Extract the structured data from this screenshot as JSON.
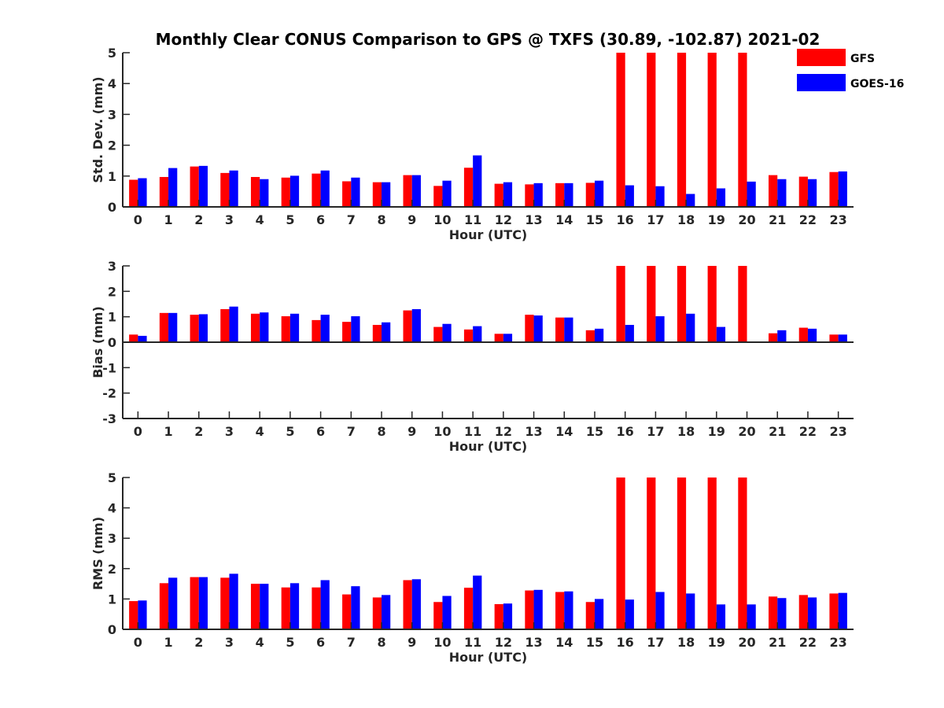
{
  "title": "Monthly Clear CONUS Comparison to GPS @ TXFS (30.89, -102.87) 2021-02",
  "legend": {
    "placement": "top-right",
    "items": [
      {
        "label": "GFS",
        "color": "#ff0000"
      },
      {
        "label": "GOES-16",
        "color": "#0000ff"
      }
    ]
  },
  "chart_data": [
    {
      "type": "bar",
      "xlabel": "Hour (UTC)",
      "ylabel": "Std. Dev. (mm)",
      "ylim": [
        0,
        5
      ],
      "yticks": [
        0,
        1,
        2,
        3,
        4,
        5
      ],
      "categories": [
        "0",
        "1",
        "2",
        "3",
        "4",
        "5",
        "6",
        "7",
        "8",
        "9",
        "10",
        "11",
        "12",
        "13",
        "14",
        "15",
        "16",
        "17",
        "18",
        "19",
        "20",
        "21",
        "22",
        "23"
      ],
      "series": [
        {
          "name": "GFS",
          "color": "#ff0000",
          "values": [
            0.88,
            0.97,
            1.31,
            1.1,
            0.97,
            0.95,
            1.08,
            0.83,
            0.8,
            1.03,
            0.68,
            1.27,
            0.75,
            0.73,
            0.77,
            0.78,
            5,
            5,
            5,
            5,
            5,
            1.03,
            0.98,
            1.13
          ]
        },
        {
          "name": "GOES-16",
          "color": "#0000ff",
          "values": [
            0.93,
            1.26,
            1.33,
            1.18,
            0.9,
            1.01,
            1.18,
            0.95,
            0.8,
            1.03,
            0.85,
            1.67,
            0.8,
            0.77,
            0.77,
            0.85,
            0.7,
            0.67,
            0.42,
            0.6,
            0.82,
            0.9,
            0.9,
            1.15
          ]
        }
      ]
    },
    {
      "type": "bar",
      "xlabel": "Hour (UTC)",
      "ylabel": "Bias (mm)",
      "ylim": [
        -3,
        3
      ],
      "yticks": [
        -3,
        -2,
        -1,
        0,
        1,
        2,
        3
      ],
      "categories": [
        "0",
        "1",
        "2",
        "3",
        "4",
        "5",
        "6",
        "7",
        "8",
        "9",
        "10",
        "11",
        "12",
        "13",
        "14",
        "15",
        "16",
        "17",
        "18",
        "19",
        "20",
        "21",
        "22",
        "23"
      ],
      "series": [
        {
          "name": "GFS",
          "color": "#ff0000",
          "values": [
            0.3,
            1.15,
            1.08,
            1.3,
            1.12,
            1.02,
            0.87,
            0.8,
            0.68,
            1.25,
            0.6,
            0.5,
            0.33,
            1.08,
            0.97,
            0.47,
            3,
            3,
            3,
            3,
            3,
            0.35,
            0.57,
            0.3
          ]
        },
        {
          "name": "GOES-16",
          "color": "#0000ff",
          "values": [
            0.25,
            1.15,
            1.1,
            1.4,
            1.17,
            1.12,
            1.08,
            1.02,
            0.78,
            1.3,
            0.72,
            0.63,
            0.33,
            1.05,
            0.97,
            0.53,
            0.68,
            1.02,
            1.12,
            0.6,
            0,
            0.47,
            0.53,
            0.3
          ]
        }
      ]
    },
    {
      "type": "bar",
      "xlabel": "Hour (UTC)",
      "ylabel": "RMS (mm)",
      "ylim": [
        0,
        5
      ],
      "yticks": [
        0,
        1,
        2,
        3,
        4,
        5
      ],
      "categories": [
        "0",
        "1",
        "2",
        "3",
        "4",
        "5",
        "6",
        "7",
        "8",
        "9",
        "10",
        "11",
        "12",
        "13",
        "14",
        "15",
        "16",
        "17",
        "18",
        "19",
        "20",
        "21",
        "22",
        "23"
      ],
      "series": [
        {
          "name": "GFS",
          "color": "#ff0000",
          "values": [
            0.93,
            1.52,
            1.72,
            1.7,
            1.5,
            1.38,
            1.38,
            1.15,
            1.05,
            1.62,
            0.9,
            1.37,
            0.83,
            1.28,
            1.23,
            0.9,
            5,
            5,
            5,
            5,
            5,
            1.08,
            1.13,
            1.18
          ]
        },
        {
          "name": "GOES-16",
          "color": "#0000ff",
          "values": [
            0.95,
            1.7,
            1.72,
            1.83,
            1.5,
            1.52,
            1.62,
            1.42,
            1.13,
            1.65,
            1.1,
            1.77,
            0.85,
            1.3,
            1.25,
            1.0,
            0.98,
            1.23,
            1.18,
            0.82,
            0.82,
            1.03,
            1.05,
            1.2
          ]
        }
      ]
    }
  ]
}
